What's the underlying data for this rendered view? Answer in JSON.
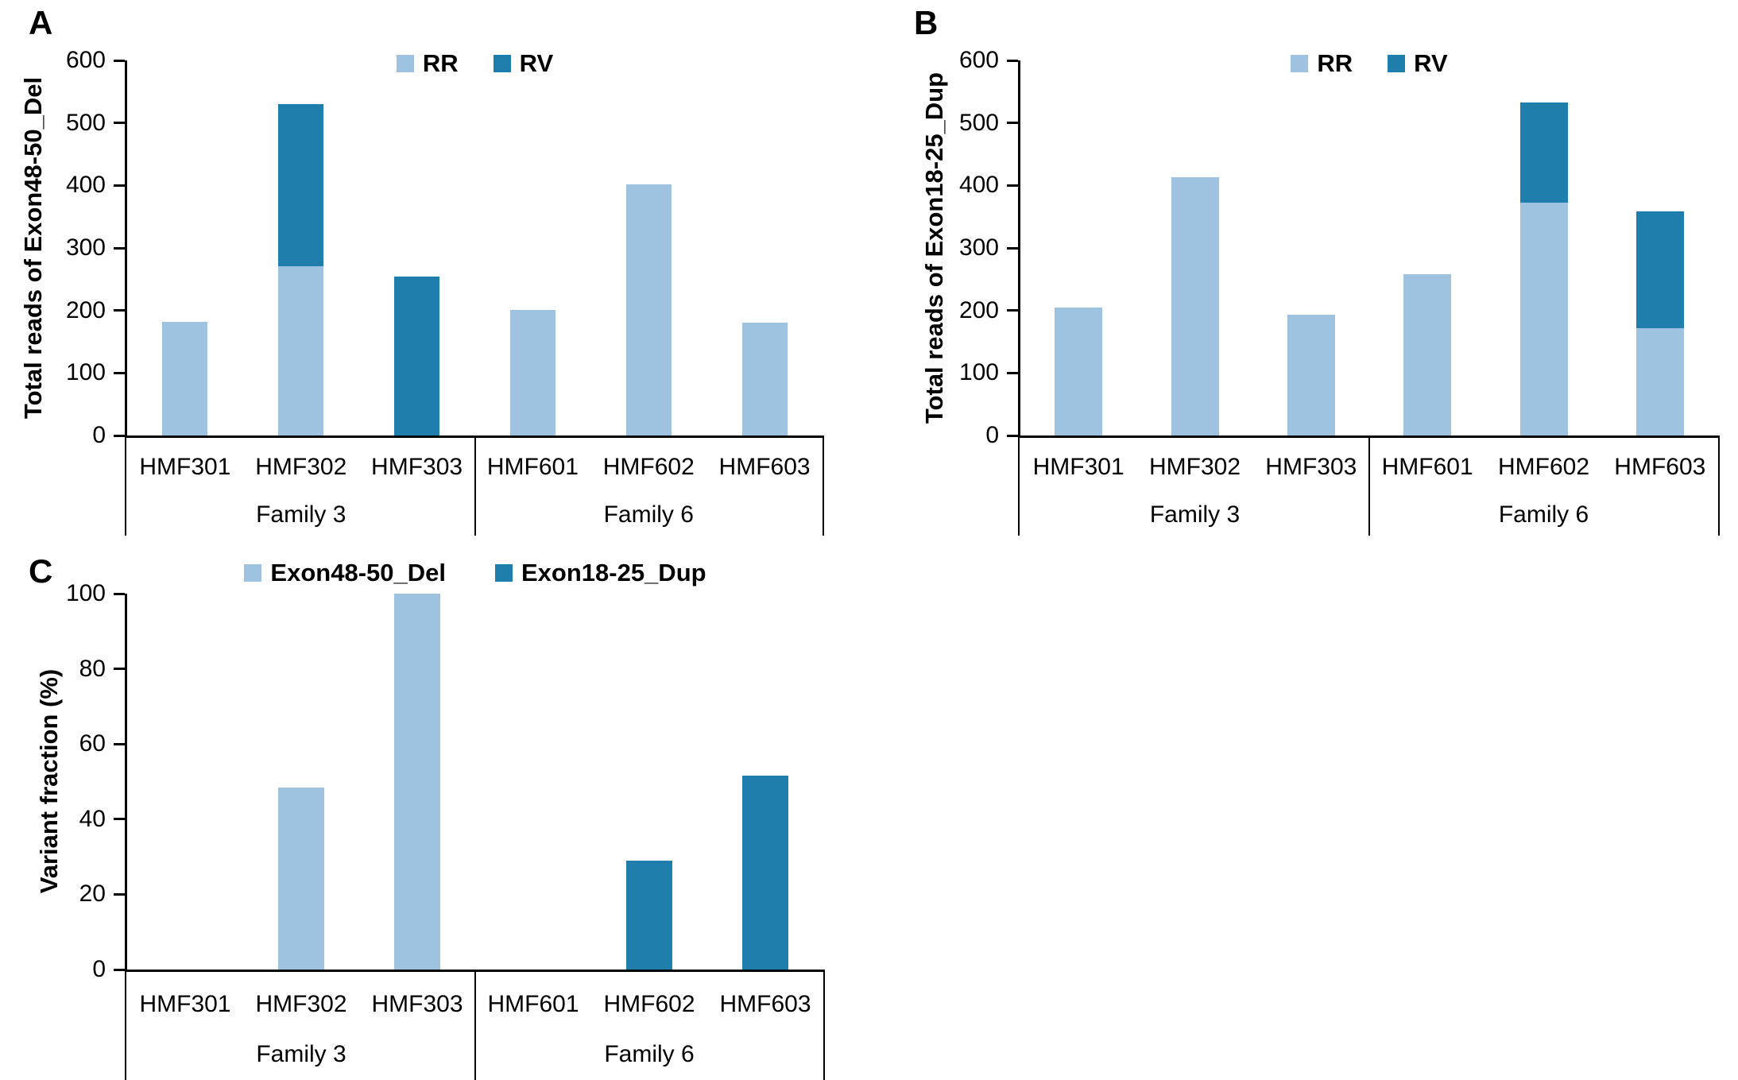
{
  "figure": {
    "background": "#ffffff"
  },
  "colors": {
    "light_blue": "#9dc3e0",
    "dark_blue": "#207eac",
    "axis": "#000000"
  },
  "chart_data": [
    {
      "panel_label": "A",
      "type": "stacked-bar",
      "ylabel": "Total reads of Exon48-50_Del",
      "ylim": [
        0,
        600
      ],
      "ytick_step": 100,
      "yticks": [
        "0",
        "100",
        "200",
        "300",
        "400",
        "500",
        "600"
      ],
      "grid": false,
      "legend_position": "top-center",
      "categories": [
        "HMF301",
        "HMF302",
        "HMF303",
        "HMF601",
        "HMF602",
        "HMF603"
      ],
      "groups": [
        {
          "label": "Family 3",
          "span": 3
        },
        {
          "label": "Family 6",
          "span": 3
        }
      ],
      "series": [
        {
          "name": "RR",
          "color": "#9dc3e0",
          "values": [
            182,
            271,
            0,
            201,
            402,
            180
          ]
        },
        {
          "name": "RV",
          "color": "#207eac",
          "values": [
            0,
            259,
            254,
            0,
            0,
            0
          ]
        }
      ]
    },
    {
      "panel_label": "B",
      "type": "stacked-bar",
      "ylabel": "Total reads of Exon18-25_Dup",
      "ylim": [
        0,
        600
      ],
      "ytick_step": 100,
      "yticks": [
        "0",
        "100",
        "200",
        "300",
        "400",
        "500",
        "600"
      ],
      "grid": false,
      "legend_position": "top-center",
      "categories": [
        "HMF301",
        "HMF302",
        "HMF303",
        "HMF601",
        "HMF602",
        "HMF603"
      ],
      "groups": [
        {
          "label": "Family 3",
          "span": 3
        },
        {
          "label": "Family 6",
          "span": 3
        }
      ],
      "series": [
        {
          "name": "RR",
          "color": "#9dc3e0",
          "values": [
            205,
            413,
            193,
            258,
            373,
            172
          ]
        },
        {
          "name": "RV",
          "color": "#207eac",
          "values": [
            0,
            0,
            0,
            0,
            159,
            187
          ]
        }
      ]
    },
    {
      "panel_label": "C",
      "type": "bar",
      "ylabel": "Variant fraction (%)",
      "ylim": [
        0,
        100
      ],
      "ytick_step": 20,
      "yticks": [
        "0",
        "20",
        "40",
        "60",
        "80",
        "100"
      ],
      "grid": false,
      "legend_position": "top-center",
      "categories": [
        "HMF301",
        "HMF302",
        "HMF303",
        "HMF601",
        "HMF602",
        "HMF603"
      ],
      "groups": [
        {
          "label": "Family 3",
          "span": 3
        },
        {
          "label": "Family 6",
          "span": 3
        }
      ],
      "series": [
        {
          "name": "Exon48-50_Del",
          "color": "#9dc3e0",
          "values": [
            0,
            48.5,
            100,
            0,
            0,
            0
          ]
        },
        {
          "name": "Exon18-25_Dup",
          "color": "#207eac",
          "values": [
            0,
            0,
            0,
            0,
            29,
            51.5
          ]
        }
      ]
    }
  ]
}
